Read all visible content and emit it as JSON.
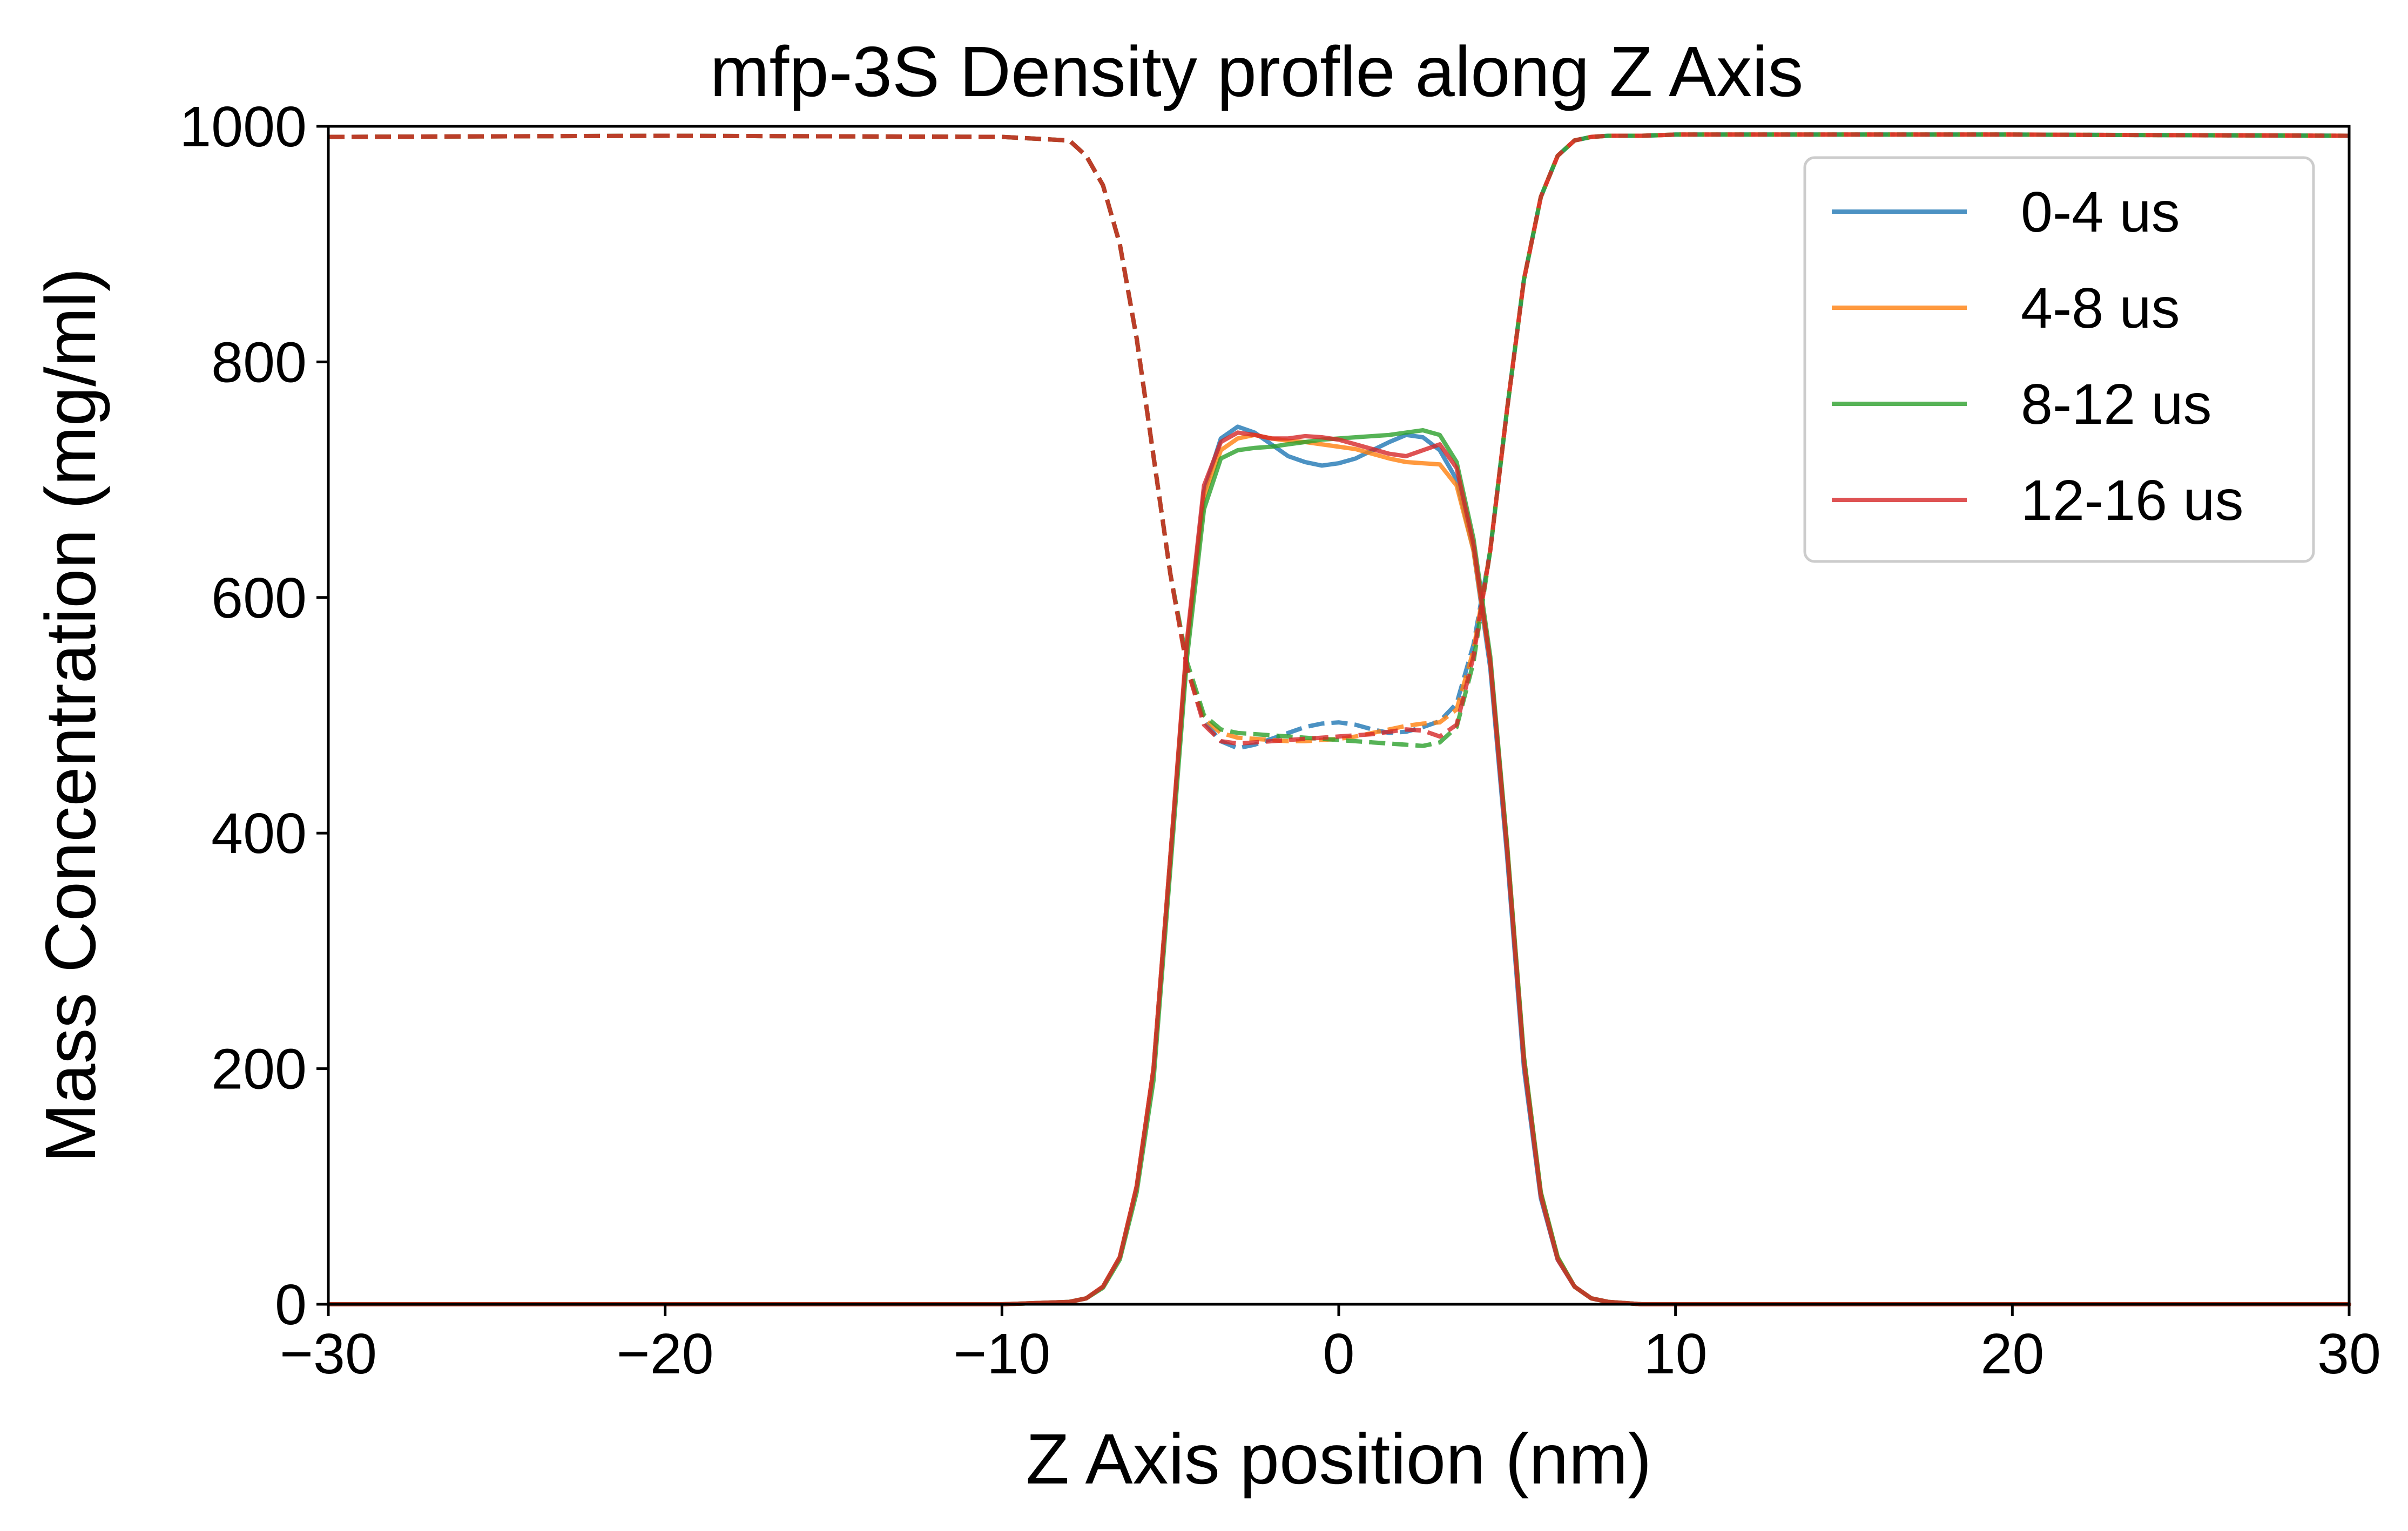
{
  "chart_data": {
    "type": "line",
    "title": "mfp-3S Density profle along Z Axis",
    "xlabel": "Z Axis position (nm)",
    "ylabel": "Mass Concentration (mg/ml)",
    "xlim": [
      -30,
      30
    ],
    "ylim": [
      0,
      1000
    ],
    "x_ticks": [
      -30,
      -20,
      -10,
      0,
      10,
      20,
      30
    ],
    "x_tick_labels": [
      "−30",
      "−20",
      "−10",
      "0",
      "10",
      "20",
      "30"
    ],
    "y_ticks": [
      0,
      200,
      400,
      600,
      800,
      1000
    ],
    "y_tick_labels": [
      "0",
      "200",
      "400",
      "600",
      "800",
      "1000"
    ],
    "grid": false,
    "legend_position": "top-right",
    "series": [
      {
        "name": "0-4 us",
        "color": "#1f77b4",
        "protein_x": [
          -30,
          -20,
          -10,
          -8,
          -7.5,
          -7,
          -6.5,
          -6,
          -5.5,
          -5,
          -4.5,
          -4,
          -3.5,
          -3,
          -2.5,
          -2,
          -1.5,
          -1,
          -0.5,
          0,
          0.5,
          1,
          1.5,
          2,
          2.5,
          3,
          3.5,
          4,
          4.5,
          5,
          5.5,
          6,
          6.5,
          7,
          7.5,
          8,
          9,
          10,
          20,
          30
        ],
        "protein_y": [
          0,
          0,
          0,
          2,
          5,
          15,
          40,
          100,
          200,
          380,
          560,
          690,
          735,
          745,
          740,
          730,
          720,
          715,
          712,
          714,
          718,
          725,
          732,
          738,
          736,
          725,
          700,
          640,
          540,
          380,
          200,
          90,
          38,
          15,
          5,
          2,
          0,
          0,
          0,
          0
        ],
        "water_x": [
          -30,
          -20,
          -10,
          -8,
          -7.5,
          -7,
          -6.5,
          -6,
          -5.5,
          -5,
          -4.5,
          -4,
          -3.5,
          -3,
          -2.5,
          -2,
          -1.5,
          -1,
          -0.5,
          0,
          0.5,
          1,
          1.5,
          2,
          2.5,
          3,
          3.5,
          4,
          4.5,
          5,
          5.5,
          6,
          6.5,
          7,
          7.5,
          8,
          9,
          10,
          20,
          30
        ],
        "water_y": [
          991,
          992,
          991,
          988,
          975,
          950,
          900,
          820,
          720,
          620,
          540,
          495,
          478,
          472,
          475,
          480,
          485,
          490,
          493,
          494,
          492,
          488,
          485,
          486,
          490,
          495,
          510,
          560,
          640,
          760,
          870,
          940,
          975,
          988,
          991,
          992,
          992,
          993,
          993,
          992
        ]
      },
      {
        "name": "4-8 us",
        "color": "#ff7f0e",
        "protein_x": [
          -30,
          -20,
          -10,
          -8,
          -7.5,
          -7,
          -6.5,
          -6,
          -5.5,
          -5,
          -4.5,
          -4,
          -3.5,
          -3,
          -2.5,
          -2,
          -1.5,
          -1,
          -0.5,
          0,
          0.5,
          1,
          1.5,
          2,
          2.5,
          3,
          3.5,
          4,
          4.5,
          5,
          5.5,
          6,
          6.5,
          7,
          7.5,
          8,
          9,
          10,
          20,
          30
        ],
        "protein_y": [
          0,
          0,
          0,
          2,
          5,
          15,
          40,
          100,
          200,
          380,
          560,
          685,
          725,
          735,
          738,
          735,
          733,
          732,
          730,
          728,
          726,
          722,
          718,
          715,
          714,
          713,
          695,
          640,
          545,
          390,
          210,
          95,
          40,
          15,
          5,
          2,
          0,
          0,
          0,
          0
        ],
        "water_x": [
          -30,
          -20,
          -10,
          -8,
          -7.5,
          -7,
          -6.5,
          -6,
          -5.5,
          -5,
          -4.5,
          -4,
          -3.5,
          -3,
          -2.5,
          -2,
          -1.5,
          -1,
          -0.5,
          0,
          0.5,
          1,
          1.5,
          2,
          2.5,
          3,
          3.5,
          4,
          4.5,
          5,
          5.5,
          6,
          6.5,
          7,
          7.5,
          8,
          9,
          10,
          20,
          30
        ],
        "water_y": [
          991,
          992,
          991,
          988,
          975,
          950,
          900,
          820,
          720,
          620,
          540,
          497,
          485,
          481,
          480,
          479,
          478,
          478,
          479,
          480,
          482,
          485,
          488,
          491,
          493,
          494,
          505,
          555,
          640,
          760,
          870,
          940,
          975,
          988,
          991,
          992,
          992,
          993,
          993,
          992
        ]
      },
      {
        "name": "8-12 us",
        "color": "#2ca02c",
        "protein_x": [
          -30,
          -20,
          -10,
          -8,
          -7.5,
          -7,
          -6.5,
          -6,
          -5.5,
          -5,
          -4.5,
          -4,
          -3.5,
          -3,
          -2.5,
          -2,
          -1.5,
          -1,
          -0.5,
          0,
          0.5,
          1,
          1.5,
          2,
          2.5,
          3,
          3.5,
          4,
          4.5,
          5,
          5.5,
          6,
          6.5,
          7,
          7.5,
          8,
          9,
          10,
          20,
          30
        ],
        "protein_y": [
          0,
          0,
          0,
          2,
          5,
          14,
          38,
          95,
          190,
          370,
          550,
          675,
          718,
          725,
          727,
          728,
          730,
          732,
          734,
          735,
          736,
          737,
          738,
          740,
          742,
          738,
          715,
          650,
          550,
          390,
          210,
          95,
          40,
          15,
          5,
          2,
          0,
          0,
          0,
          0
        ],
        "water_x": [
          -30,
          -20,
          -10,
          -8,
          -7.5,
          -7,
          -6.5,
          -6,
          -5.5,
          -5,
          -4.5,
          -4,
          -3.5,
          -3,
          -2.5,
          -2,
          -1.5,
          -1,
          -0.5,
          0,
          0.5,
          1,
          1.5,
          2,
          2.5,
          3,
          3.5,
          4,
          4.5,
          5,
          5.5,
          6,
          6.5,
          7,
          7.5,
          8,
          9,
          10,
          20,
          30
        ],
        "water_y": [
          991,
          992,
          991,
          988,
          975,
          950,
          900,
          820,
          720,
          620,
          545,
          500,
          488,
          485,
          484,
          483,
          482,
          481,
          480,
          479,
          478,
          477,
          476,
          475,
          474,
          477,
          490,
          545,
          640,
          760,
          870,
          940,
          975,
          988,
          991,
          992,
          992,
          993,
          993,
          992
        ]
      },
      {
        "name": "12-16 us",
        "color": "#d62728",
        "protein_x": [
          -30,
          -20,
          -10,
          -8,
          -7.5,
          -7,
          -6.5,
          -6,
          -5.5,
          -5,
          -4.5,
          -4,
          -3.5,
          -3,
          -2.5,
          -2,
          -1.5,
          -1,
          -0.5,
          0,
          0.5,
          1,
          1.5,
          2,
          2.5,
          3,
          3.5,
          4,
          4.5,
          5,
          5.5,
          6,
          6.5,
          7,
          7.5,
          8,
          9,
          10,
          20,
          30
        ],
        "protein_y": [
          0,
          0,
          0,
          2,
          5,
          15,
          40,
          100,
          200,
          380,
          565,
          695,
          732,
          740,
          738,
          735,
          735,
          737,
          736,
          734,
          730,
          726,
          722,
          720,
          725,
          730,
          710,
          645,
          545,
          385,
          205,
          92,
          38,
          15,
          5,
          2,
          0,
          0,
          0,
          0
        ],
        "water_x": [
          -30,
          -20,
          -10,
          -8,
          -7.5,
          -7,
          -6.5,
          -6,
          -5.5,
          -5,
          -4.5,
          -4,
          -3.5,
          -3,
          -2.5,
          -2,
          -1.5,
          -1,
          -0.5,
          0,
          0.5,
          1,
          1.5,
          2,
          2.5,
          3,
          3.5,
          4,
          4.5,
          5,
          5.5,
          6,
          6.5,
          7,
          7.5,
          8,
          9,
          10,
          20,
          30
        ],
        "water_y": [
          991,
          992,
          991,
          988,
          975,
          950,
          900,
          820,
          720,
          620,
          540,
          492,
          478,
          476,
          477,
          478,
          479,
          480,
          481,
          482,
          483,
          484,
          486,
          488,
          487,
          482,
          492,
          550,
          640,
          760,
          870,
          940,
          975,
          988,
          991,
          992,
          992,
          993,
          993,
          992
        ]
      }
    ]
  }
}
